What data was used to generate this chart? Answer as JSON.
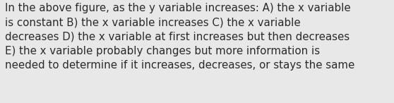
{
  "text": "In the above figure, as the y variable increases: A) the x variable\nis constant B) the x variable increases C) the x variable\ndecreases D) the x variable at first increases but then decreases\nE) the x variable probably changes but more information is\nneeded to determine if it increases, decreases, or stays the same",
  "background_color": "#e8e8e8",
  "text_color": "#2a2a2a",
  "font_size": 10.8,
  "fig_width": 5.58,
  "fig_height": 1.46,
  "dpi": 100
}
